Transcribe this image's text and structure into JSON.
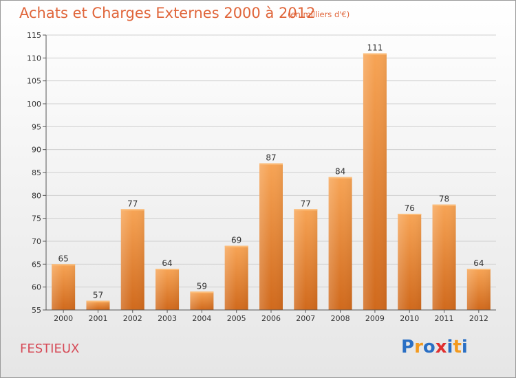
{
  "chart_data": {
    "type": "bar",
    "title": "Achats et Charges Externes 2000 à 2012",
    "subtitle": "(en milliers d'€)",
    "categories": [
      "2000",
      "2001",
      "2002",
      "2003",
      "2004",
      "2005",
      "2006",
      "2007",
      "2008",
      "2009",
      "2010",
      "2011",
      "2012"
    ],
    "values": [
      65,
      57,
      77,
      64,
      59,
      69,
      87,
      77,
      84,
      111,
      76,
      78,
      64
    ],
    "ylim": [
      55,
      115
    ],
    "yticks": [
      "55",
      "60",
      "65",
      "70",
      "75",
      "80",
      "85",
      "90",
      "95",
      "100",
      "105",
      "110",
      "115"
    ],
    "grid": true,
    "bar_color": "#f0883a",
    "xlabel": "",
    "ylabel": ""
  },
  "commune": "FESTIEUX",
  "logo": {
    "letters": [
      "P",
      "r",
      "o",
      "x",
      "i",
      "t",
      "i"
    ],
    "colors": [
      "#2a6fc4",
      "#f39a1e",
      "#2a6fc4",
      "#e03030",
      "#2a6fc4",
      "#f39a1e",
      "#2a6fc4"
    ]
  },
  "colors": {
    "title": "#e0653a",
    "commune": "#d64a57"
  }
}
